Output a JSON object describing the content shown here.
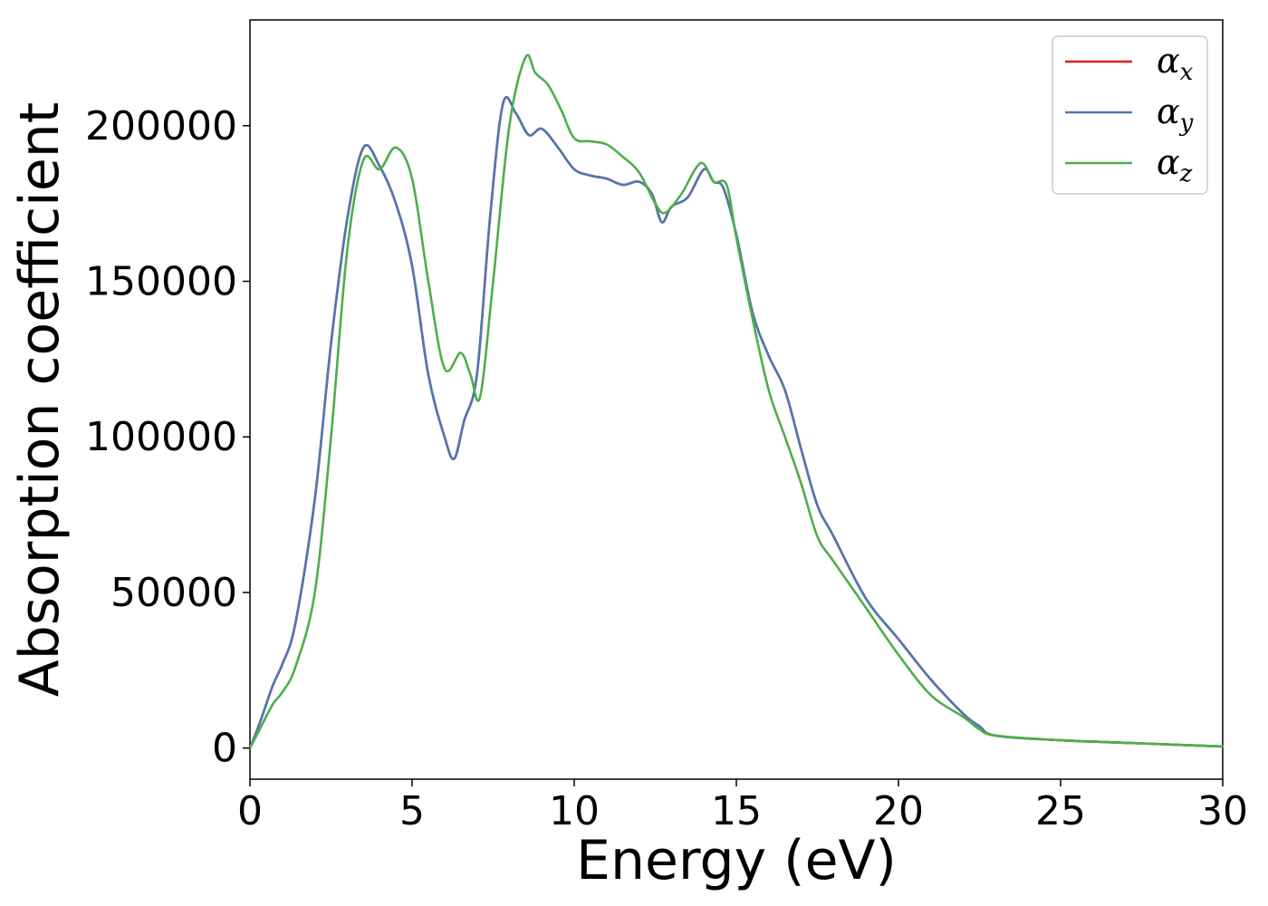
{
  "chart_data": {
    "type": "line",
    "xlabel": "Energy (eV)",
    "ylabel": "Absorption coefficient",
    "xlim": [
      0,
      30
    ],
    "ylim": [
      -10000,
      234000
    ],
    "xticks": [
      0,
      5,
      10,
      15,
      20,
      25,
      30
    ],
    "xtick_labels": [
      "0",
      "5",
      "10",
      "15",
      "20",
      "25",
      "30"
    ],
    "yticks": [
      0,
      50000,
      100000,
      150000,
      200000
    ],
    "ytick_labels": [
      "0",
      "50000",
      "100000",
      "150000",
      "200000"
    ],
    "grid": false,
    "legend_position": "top-right",
    "series": [
      {
        "name": "α",
        "subscript": "x",
        "color": "#e41a1c",
        "x": [
          0,
          0.3,
          0.7,
          1.0,
          1.4,
          2.0,
          2.5,
          3.0,
          3.5,
          4.0,
          4.5,
          5.0,
          5.5,
          6.0,
          6.3,
          6.6,
          7.0,
          7.4,
          7.8,
          8.2,
          8.6,
          9.0,
          9.5,
          10.0,
          10.5,
          11.0,
          11.5,
          12.0,
          12.4,
          12.7,
          13.0,
          13.5,
          14.0,
          14.3,
          14.6,
          15.0,
          15.5,
          16.0,
          16.5,
          17.0,
          17.5,
          18.0,
          19.0,
          20.0,
          21.0,
          22.0,
          22.5,
          23.0,
          25.0,
          27.5,
          30.0
        ],
        "y": [
          0,
          8000,
          20000,
          27000,
          40000,
          80000,
          130000,
          170000,
          193000,
          187000,
          175000,
          155000,
          120000,
          100000,
          93000,
          105000,
          120000,
          170000,
          207000,
          204000,
          197000,
          199000,
          193000,
          186000,
          184000,
          183000,
          181000,
          182000,
          178000,
          169000,
          174000,
          177000,
          186000,
          182000,
          180000,
          165000,
          140000,
          126000,
          115000,
          96000,
          78000,
          68000,
          48000,
          35000,
          22000,
          11000,
          7000,
          4000,
          2500,
          1500,
          500
        ]
      },
      {
        "name": "α",
        "subscript": "y",
        "color": "#4e79b0",
        "x": [
          0,
          0.3,
          0.7,
          1.0,
          1.4,
          2.0,
          2.5,
          3.0,
          3.5,
          4.0,
          4.5,
          5.0,
          5.5,
          6.0,
          6.3,
          6.6,
          7.0,
          7.4,
          7.8,
          8.2,
          8.6,
          9.0,
          9.5,
          10.0,
          10.5,
          11.0,
          11.5,
          12.0,
          12.4,
          12.7,
          13.0,
          13.5,
          14.0,
          14.3,
          14.6,
          15.0,
          15.5,
          16.0,
          16.5,
          17.0,
          17.5,
          18.0,
          19.0,
          20.0,
          21.0,
          22.0,
          22.5,
          23.0,
          25.0,
          27.5,
          30.0
        ],
        "y": [
          0,
          8000,
          20000,
          27000,
          40000,
          80000,
          130000,
          170000,
          193000,
          187000,
          175000,
          155000,
          120000,
          100000,
          93000,
          105000,
          120000,
          170000,
          207000,
          204000,
          197000,
          199000,
          193000,
          186000,
          184000,
          183000,
          181000,
          182000,
          178000,
          169000,
          174000,
          177000,
          186000,
          182000,
          180000,
          165000,
          140000,
          126000,
          115000,
          96000,
          78000,
          68000,
          48000,
          35000,
          22000,
          11000,
          7000,
          4000,
          2500,
          1500,
          500
        ]
      },
      {
        "name": "α",
        "subscript": "z",
        "color": "#4daf4a",
        "x": [
          0,
          0.3,
          0.7,
          1.0,
          1.4,
          2.0,
          2.5,
          3.0,
          3.5,
          4.0,
          4.5,
          5.0,
          5.5,
          6.0,
          6.5,
          6.8,
          7.1,
          7.5,
          8.0,
          8.5,
          8.8,
          9.2,
          9.6,
          10.0,
          10.5,
          11.0,
          11.5,
          12.0,
          12.5,
          12.8,
          13.3,
          13.9,
          14.3,
          14.7,
          15.0,
          15.5,
          16.0,
          16.5,
          17.0,
          17.5,
          18.0,
          19.0,
          20.0,
          21.0,
          22.0,
          22.5,
          23.0,
          25.0,
          27.5,
          30.0
        ],
        "y": [
          0,
          6000,
          14000,
          18000,
          26000,
          50000,
          100000,
          160000,
          189000,
          186000,
          193000,
          183000,
          150000,
          122000,
          127000,
          120000,
          113000,
          150000,
          200000,
          222000,
          217000,
          213000,
          205000,
          196000,
          195000,
          194000,
          190000,
          185000,
          175000,
          172000,
          178000,
          188000,
          182000,
          181000,
          164000,
          138000,
          115000,
          100000,
          85000,
          68000,
          60000,
          45000,
          30000,
          17000,
          10000,
          6000,
          4000,
          2500,
          1500,
          500
        ]
      }
    ]
  }
}
